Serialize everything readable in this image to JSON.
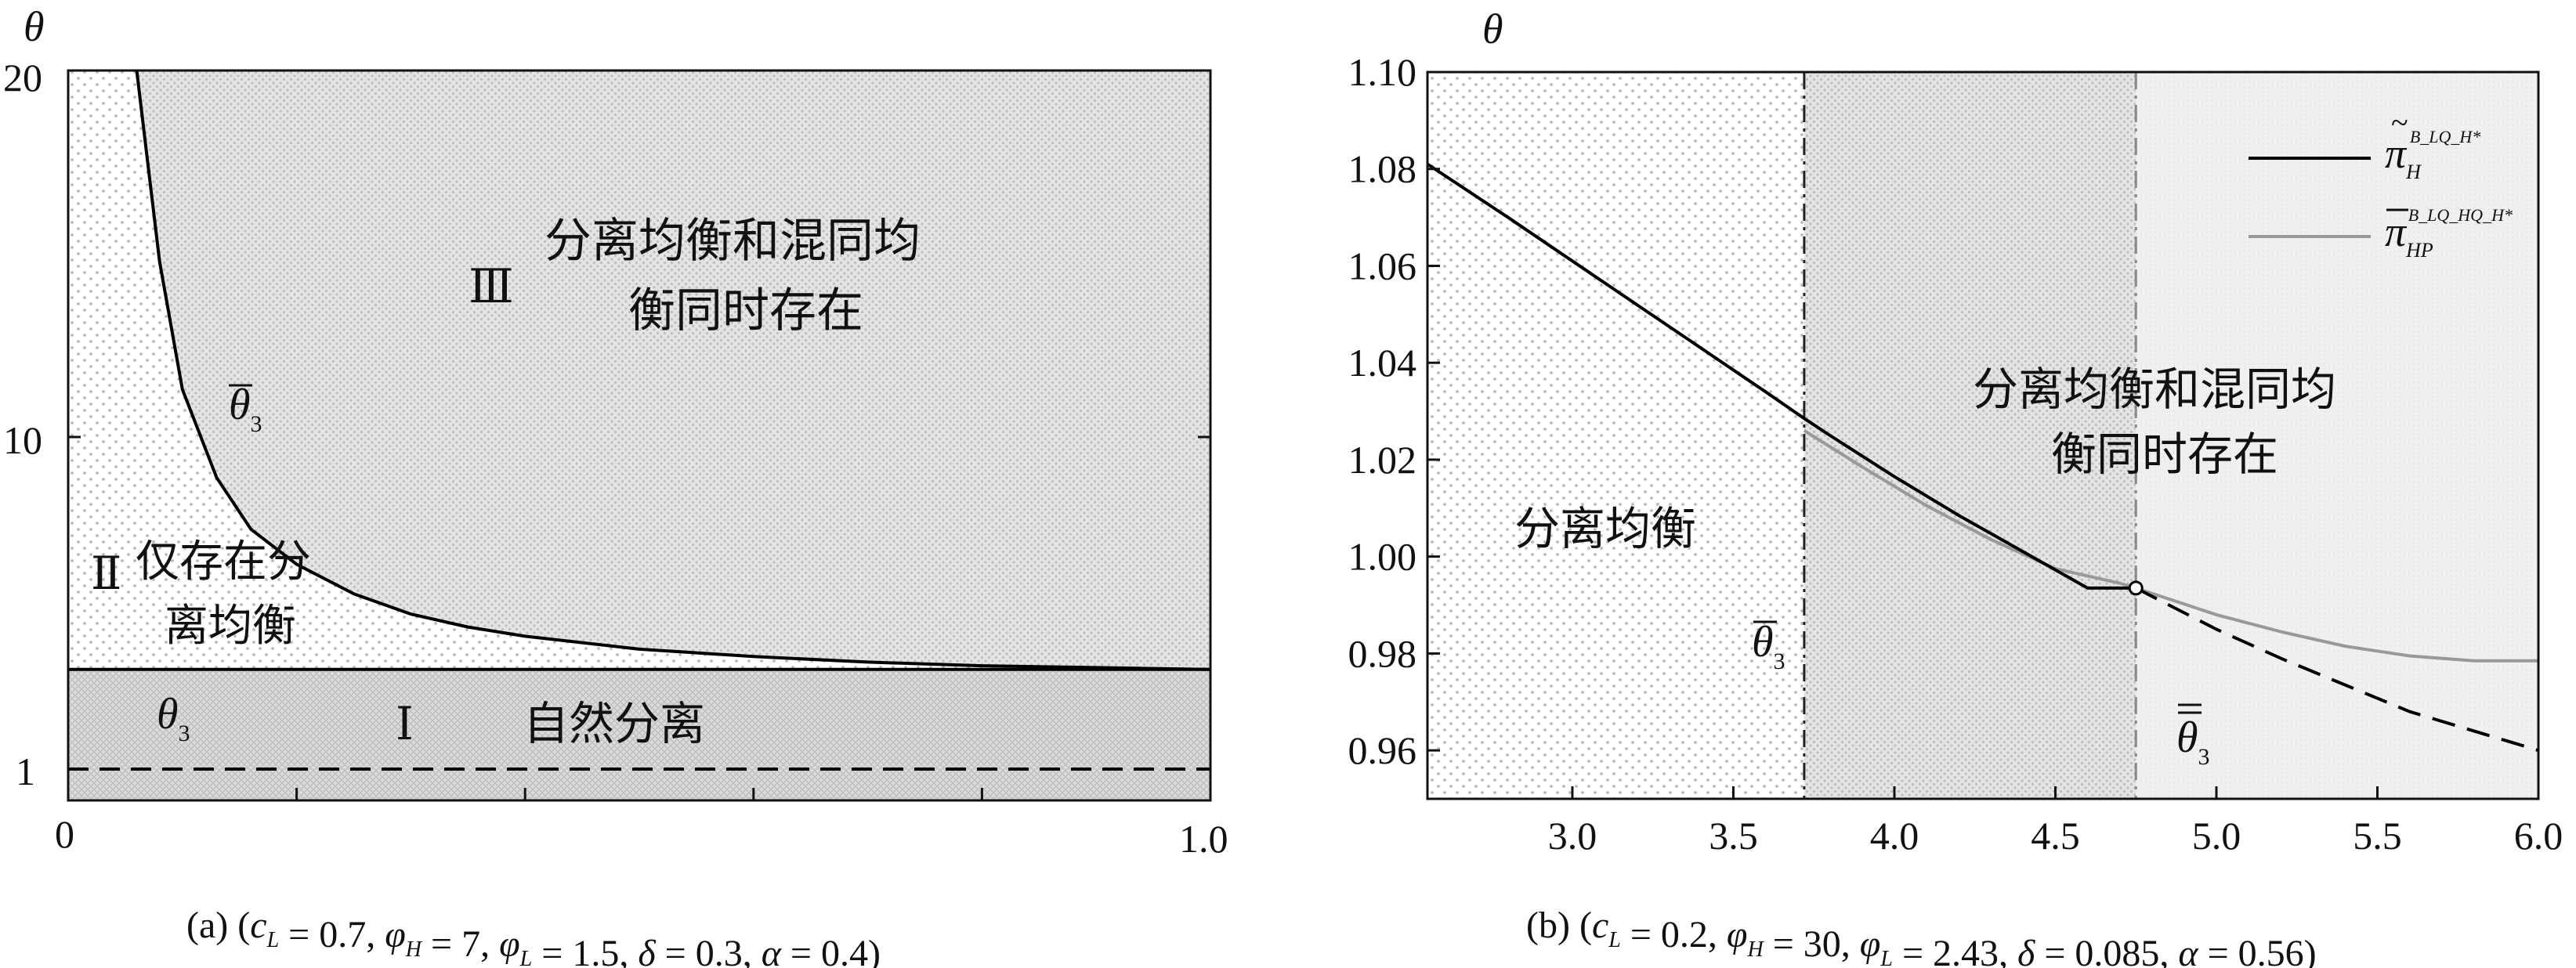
{
  "chart_data": [
    {
      "type": "area",
      "panel": "(a)",
      "params": "(c_L = 0.7, φ_H = 7, φ_L = 1.5, δ = 0.3, α = 0.4)",
      "caption": {
        "label": "(a)",
        "parts": [
          {
            "t": "(",
            "sub": ""
          },
          {
            "t": "c",
            "sub": "L",
            "italic": true
          },
          {
            "t": " = 0.7, ",
            "sub": ""
          },
          {
            "t": "φ",
            "sub": "H",
            "italic": true
          },
          {
            "t": " = 7, ",
            "sub": ""
          },
          {
            "t": "φ",
            "sub": "L",
            "italic": true
          },
          {
            "t": " = 1.5, ",
            "sub": ""
          },
          {
            "t": "δ",
            "sub": "",
            "italic": true
          },
          {
            "t": " = 0.3, ",
            "sub": ""
          },
          {
            "t": "α",
            "sub": "",
            "italic": true
          },
          {
            "t": " = 0.4)",
            "sub": ""
          }
        ]
      },
      "ylabel": "θ",
      "xlim": [
        0,
        1.0
      ],
      "x_tick_labels": [
        "0",
        "1.0"
      ],
      "y_tick_labels": [
        "1",
        "10",
        "20"
      ],
      "ylim_labels": {
        "bottom": "1",
        "mid": "10",
        "top": "20"
      },
      "regions": [
        {
          "id": "I",
          "label": "Ⅰ",
          "text": "自然分离",
          "symbol": "θ",
          "symbol_sub": "3"
        },
        {
          "id": "II",
          "label": "Ⅱ",
          "text_lines": [
            "仅存在分",
            "离均衡"
          ]
        },
        {
          "id": "III",
          "label": "Ⅲ",
          "text_lines": [
            "分离均衡和混同均",
            "衡同时存在"
          ]
        }
      ],
      "curve_label": {
        "symbol": "θ",
        "bar": "single",
        "sub": "3"
      },
      "boundary_theta3_level": 3.7,
      "curve_theta3bar_x": [
        0.06,
        0.08,
        0.1,
        0.13,
        0.16,
        0.2,
        0.25,
        0.3,
        0.35,
        0.4,
        0.5,
        0.6,
        0.7,
        0.8,
        0.9,
        1.0
      ],
      "curve_theta3bar_y": [
        20,
        14.8,
        11.3,
        8.9,
        7.5,
        6.55,
        5.75,
        5.2,
        4.85,
        4.6,
        4.25,
        4.05,
        3.9,
        3.8,
        3.75,
        3.7
      ],
      "dashed_line_y": 1
    },
    {
      "type": "line",
      "panel": "(b)",
      "params": "(c_L = 0.2, φ_H = 30, φ_L = 2.43, δ = 0.085, α = 0.56)",
      "caption": {
        "label": "(b)",
        "parts": [
          {
            "t": "(",
            "sub": ""
          },
          {
            "t": "c",
            "sub": "L",
            "italic": true
          },
          {
            "t": " = 0.2, ",
            "sub": ""
          },
          {
            "t": "φ",
            "sub": "H",
            "italic": true
          },
          {
            "t": " = 30, ",
            "sub": ""
          },
          {
            "t": "φ",
            "sub": "L",
            "italic": true
          },
          {
            "t": " = 2.43, ",
            "sub": ""
          },
          {
            "t": "δ",
            "sub": "",
            "italic": true
          },
          {
            "t": " = 0.085, ",
            "sub": ""
          },
          {
            "t": "α",
            "sub": "",
            "italic": true
          },
          {
            "t": " = 0.56)",
            "sub": ""
          }
        ]
      },
      "ylabel": "θ",
      "xlim": [
        2.55,
        6.0
      ],
      "ylim": [
        0.95,
        1.1
      ],
      "x_ticks": [
        3.0,
        3.5,
        4.0,
        4.5,
        5.0,
        5.5,
        6.0
      ],
      "x_tick_labels": [
        "3.0",
        "3.5",
        "4.0",
        "4.5",
        "5.0",
        "5.5",
        "6.0"
      ],
      "y_ticks": [
        0.96,
        0.98,
        1.0,
        1.02,
        1.04,
        1.06,
        1.08,
        1.1
      ],
      "y_tick_labels": [
        "0.96",
        "0.98",
        "1.00",
        "1.02",
        "1.04",
        "1.06",
        "1.08",
        "1.10"
      ],
      "regions": [
        {
          "text": "分离均衡"
        },
        {
          "text_lines": [
            "分离均衡和混同均",
            "衡同时存在"
          ]
        }
      ],
      "vlines": [
        {
          "x": 3.72,
          "label": {
            "symbol": "θ",
            "bar": "single",
            "sub": "3"
          },
          "style": "dash-dot"
        },
        {
          "x": 4.75,
          "label": {
            "symbol": "θ",
            "bar": "double",
            "sub": "3"
          },
          "style": "dash-dot"
        }
      ],
      "series": [
        {
          "name": "π̃_H^{B_L Q_H*}",
          "legend": {
            "symbol": "π",
            "accent": "tilde",
            "sub": "H",
            "sup": "B_LQ_H*"
          },
          "color": "#000000",
          "x": [
            2.55,
            2.8,
            3.0,
            3.2,
            3.4,
            3.6,
            3.72,
            3.8,
            4.0,
            4.2,
            4.4,
            4.6,
            4.75,
            5.0,
            5.2,
            5.4,
            5.6,
            5.8,
            6.0
          ],
          "y": [
            1.081,
            1.07,
            1.061,
            1.052,
            1.043,
            1.034,
            1.0285,
            1.025,
            1.0165,
            1.0085,
            1.001,
            0.9935,
            0.9935,
            0.985,
            0.979,
            0.9735,
            0.968,
            0.964,
            0.96
          ]
        },
        {
          "name": "π̄_HP^{B_L Q_H Q_H*}",
          "legend": {
            "symbol": "π",
            "accent": "bar",
            "sub": "HP",
            "sup": "B_LQ_HQ_H*"
          },
          "color": "#999999",
          "x": [
            3.72,
            3.9,
            4.1,
            4.3,
            4.5,
            4.7,
            4.75,
            5.0,
            5.2,
            5.4,
            5.6,
            5.8,
            6.0
          ],
          "y": [
            1.026,
            1.0185,
            1.0105,
            1.0035,
            0.9975,
            0.9945,
            0.9935,
            0.988,
            0.9845,
            0.9815,
            0.9795,
            0.9785,
            0.9785
          ]
        }
      ],
      "marker": {
        "x": 4.75,
        "y": 0.9935,
        "style": "open-circle"
      }
    }
  ]
}
